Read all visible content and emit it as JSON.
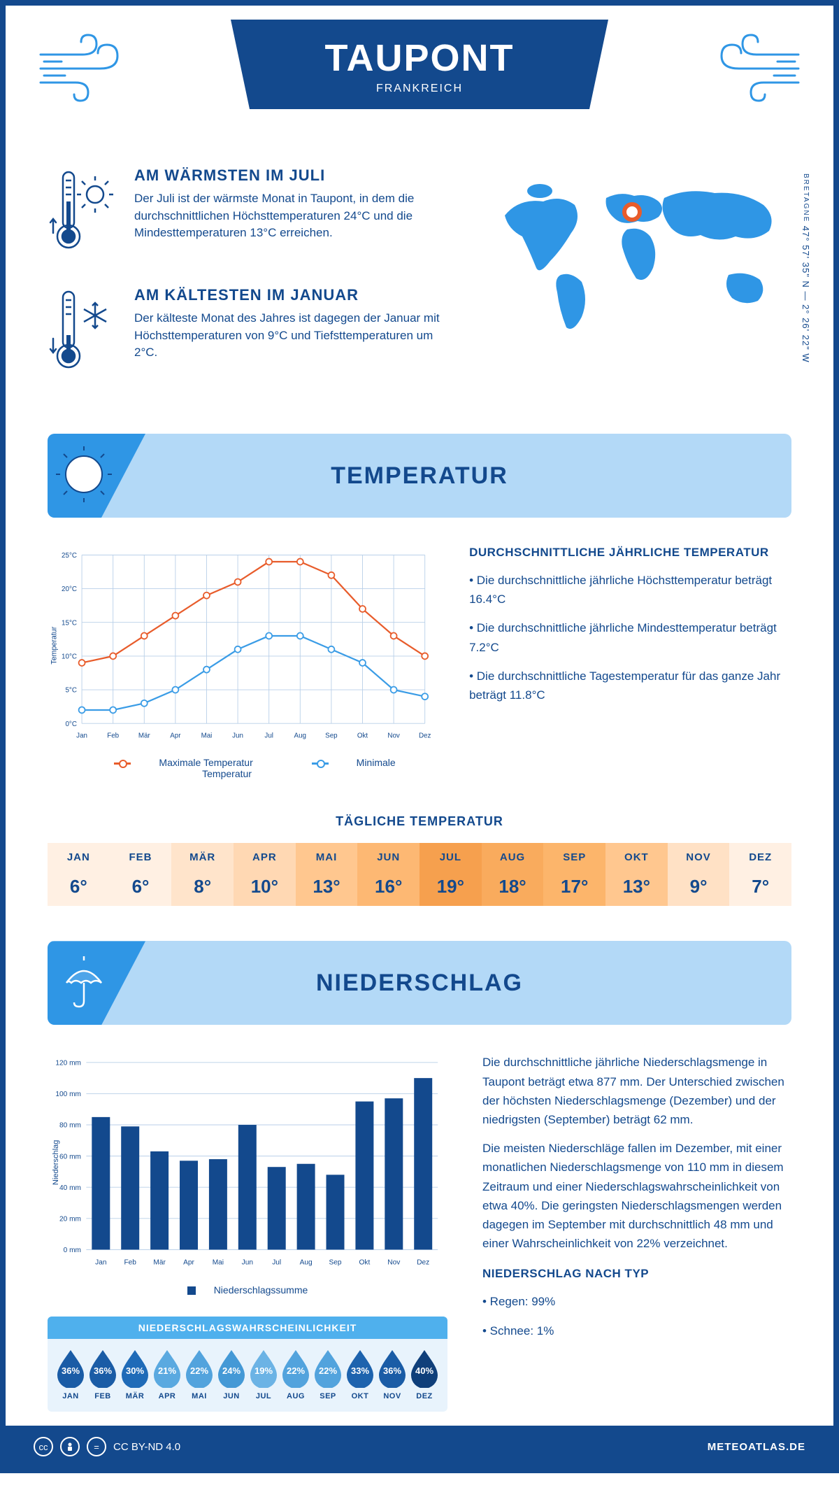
{
  "header": {
    "title": "TAUPONT",
    "country": "FRANKREICH"
  },
  "coords": {
    "region": "BRETAGNE",
    "lat": "47° 57' 35\" N",
    "sep": "—",
    "lon": "2° 26' 22\" W"
  },
  "warmest": {
    "title": "AM WÄRMSTEN IM JULI",
    "text": "Der Juli ist der wärmste Monat in Taupont, in dem die durchschnittlichen Höchsttemperaturen 24°C und die Mindesttemperaturen 13°C erreichen."
  },
  "coldest": {
    "title": "AM KÄLTESTEN IM JANUAR",
    "text": "Der kälteste Monat des Jahres ist dagegen der Januar mit Höchsttemperaturen von 9°C und Tiefsttemperaturen um 2°C."
  },
  "temp_section": {
    "banner": "TEMPERATUR",
    "desc_title": "DURCHSCHNITTLICHE JÄHRLICHE TEMPERATUR",
    "bullets": [
      "• Die durchschnittliche jährliche Höchsttemperatur beträgt 16.4°C",
      "• Die durchschnittliche jährliche Mindesttemperatur beträgt 7.2°C",
      "• Die durchschnittliche Tagestemperatur für das ganze Jahr beträgt 11.8°C"
    ],
    "legend_max": "Maximale Temperatur",
    "legend_min": "Minimale Temperatur",
    "y_title": "Temperatur",
    "ylim": [
      0,
      25
    ],
    "ytick_step": 5,
    "months": [
      "Jan",
      "Feb",
      "Mär",
      "Apr",
      "Mai",
      "Jun",
      "Jul",
      "Aug",
      "Sep",
      "Okt",
      "Nov",
      "Dez"
    ],
    "max_vals": [
      9,
      10,
      13,
      16,
      19,
      21,
      24,
      24,
      22,
      17,
      13,
      10
    ],
    "min_vals": [
      2,
      2,
      3,
      5,
      8,
      11,
      13,
      13,
      11,
      9,
      5,
      4
    ],
    "max_color": "#e85c2b",
    "min_color": "#3a9ce6",
    "grid_color": "#b8cfe8",
    "line_width": 2.5,
    "marker_size": 5
  },
  "daily": {
    "title": "TÄGLICHE TEMPERATUR",
    "months": [
      "JAN",
      "FEB",
      "MÄR",
      "APR",
      "MAI",
      "JUN",
      "JUL",
      "AUG",
      "SEP",
      "OKT",
      "NOV",
      "DEZ"
    ],
    "values": [
      "6°",
      "6°",
      "8°",
      "10°",
      "13°",
      "16°",
      "19°",
      "18°",
      "17°",
      "13°",
      "9°",
      "7°"
    ],
    "colors": [
      "#fff0e3",
      "#fff0e3",
      "#ffe4cb",
      "#ffd8b3",
      "#ffc78f",
      "#fdb873",
      "#f6a04e",
      "#f9ab5d",
      "#fcb56b",
      "#ffc78f",
      "#ffe1c5",
      "#fff0e3"
    ]
  },
  "precip_section": {
    "banner": "NIEDERSCHLAG",
    "y_title": "Niederschlag",
    "ylim": [
      0,
      120
    ],
    "ytick_step": 20,
    "months": [
      "Jan",
      "Feb",
      "Mär",
      "Apr",
      "Mai",
      "Jun",
      "Jul",
      "Aug",
      "Sep",
      "Okt",
      "Nov",
      "Dez"
    ],
    "values": [
      85,
      79,
      63,
      57,
      58,
      80,
      53,
      55,
      48,
      95,
      97,
      110
    ],
    "bar_color": "#13498d",
    "legend": "Niederschlagssumme",
    "text1": "Die durchschnittliche jährliche Niederschlagsmenge in Taupont beträgt etwa 877 mm. Der Unterschied zwischen der höchsten Niederschlagsmenge (Dezember) und der niedrigsten (September) beträgt 62 mm.",
    "text2": "Die meisten Niederschläge fallen im Dezember, mit einer monatlichen Niederschlagsmenge von 110 mm in diesem Zeitraum und einer Niederschlagswahrscheinlichkeit von etwa 40%. Die geringsten Niederschlagsmengen werden dagegen im September mit durchschnittlich 48 mm und einer Wahrscheinlichkeit von 22% verzeichnet.",
    "type_title": "NIEDERSCHLAG NACH TYP",
    "type_bullets": [
      "• Regen: 99%",
      "• Schnee: 1%"
    ]
  },
  "prob": {
    "title": "NIEDERSCHLAGSWAHRSCHEINLICHKEIT",
    "months": [
      "JAN",
      "FEB",
      "MÄR",
      "APR",
      "MAI",
      "JUN",
      "JUL",
      "AUG",
      "SEP",
      "OKT",
      "NOV",
      "DEZ"
    ],
    "values": [
      "36%",
      "36%",
      "30%",
      "21%",
      "22%",
      "24%",
      "19%",
      "22%",
      "22%",
      "33%",
      "36%",
      "40%"
    ],
    "colors": [
      "#1a5ca6",
      "#1a5ca6",
      "#1f6bb8",
      "#5aa9e0",
      "#52a3dd",
      "#4499d6",
      "#6bb3e5",
      "#52a3dd",
      "#52a3dd",
      "#1d63ae",
      "#1a5ca6",
      "#0f3f7a"
    ]
  },
  "footer": {
    "license": "CC BY-ND 4.0",
    "site": "METEOATLAS.DE"
  }
}
